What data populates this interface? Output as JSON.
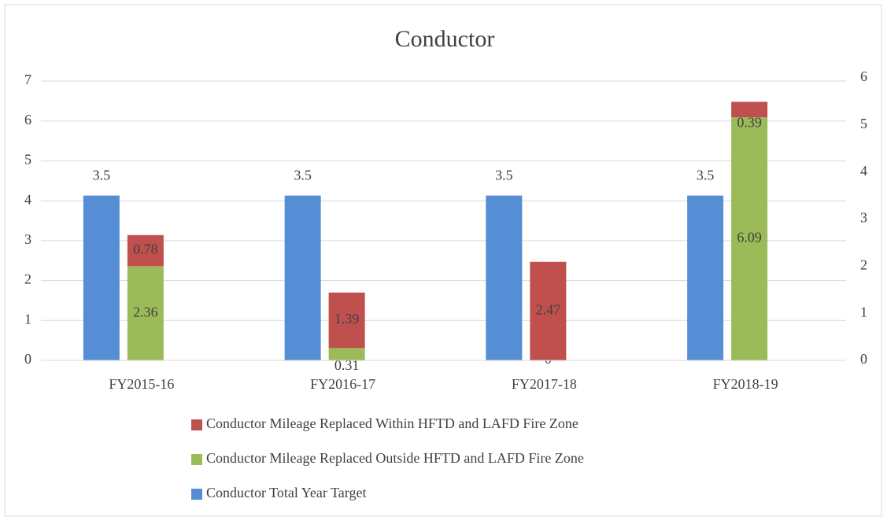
{
  "chart_data": {
    "type": "bar",
    "title": "Conductor",
    "categories": [
      "FY2015-16",
      "FY2016-17",
      "FY2017-18",
      "FY2018-19"
    ],
    "series": [
      {
        "name": "Conductor Mileage Replaced Within HFTD and LAFD Fire Zone",
        "color": "#c0504d",
        "values": [
          0.78,
          1.39,
          2.47,
          0.39
        ]
      },
      {
        "name": "Conductor Mileage Replaced Outside HFTD and LAFD Fire Zone",
        "color": "#9bbb59",
        "values": [
          2.36,
          0.31,
          0,
          6.09
        ]
      },
      {
        "name": "Conductor Total Year Target",
        "color": "#558ed5",
        "values": [
          3.5,
          3.5,
          3.5,
          3.5
        ],
        "axis": "y2"
      }
    ],
    "ylim": [
      0,
      7
    ],
    "yticks": [
      0,
      1,
      2,
      3,
      4,
      5,
      6,
      7
    ],
    "y2lim": [
      0,
      6
    ],
    "y2ticks": [
      0,
      1,
      2,
      3,
      4,
      5,
      6
    ],
    "grid": true,
    "stacked": true,
    "legend": "bottom"
  }
}
